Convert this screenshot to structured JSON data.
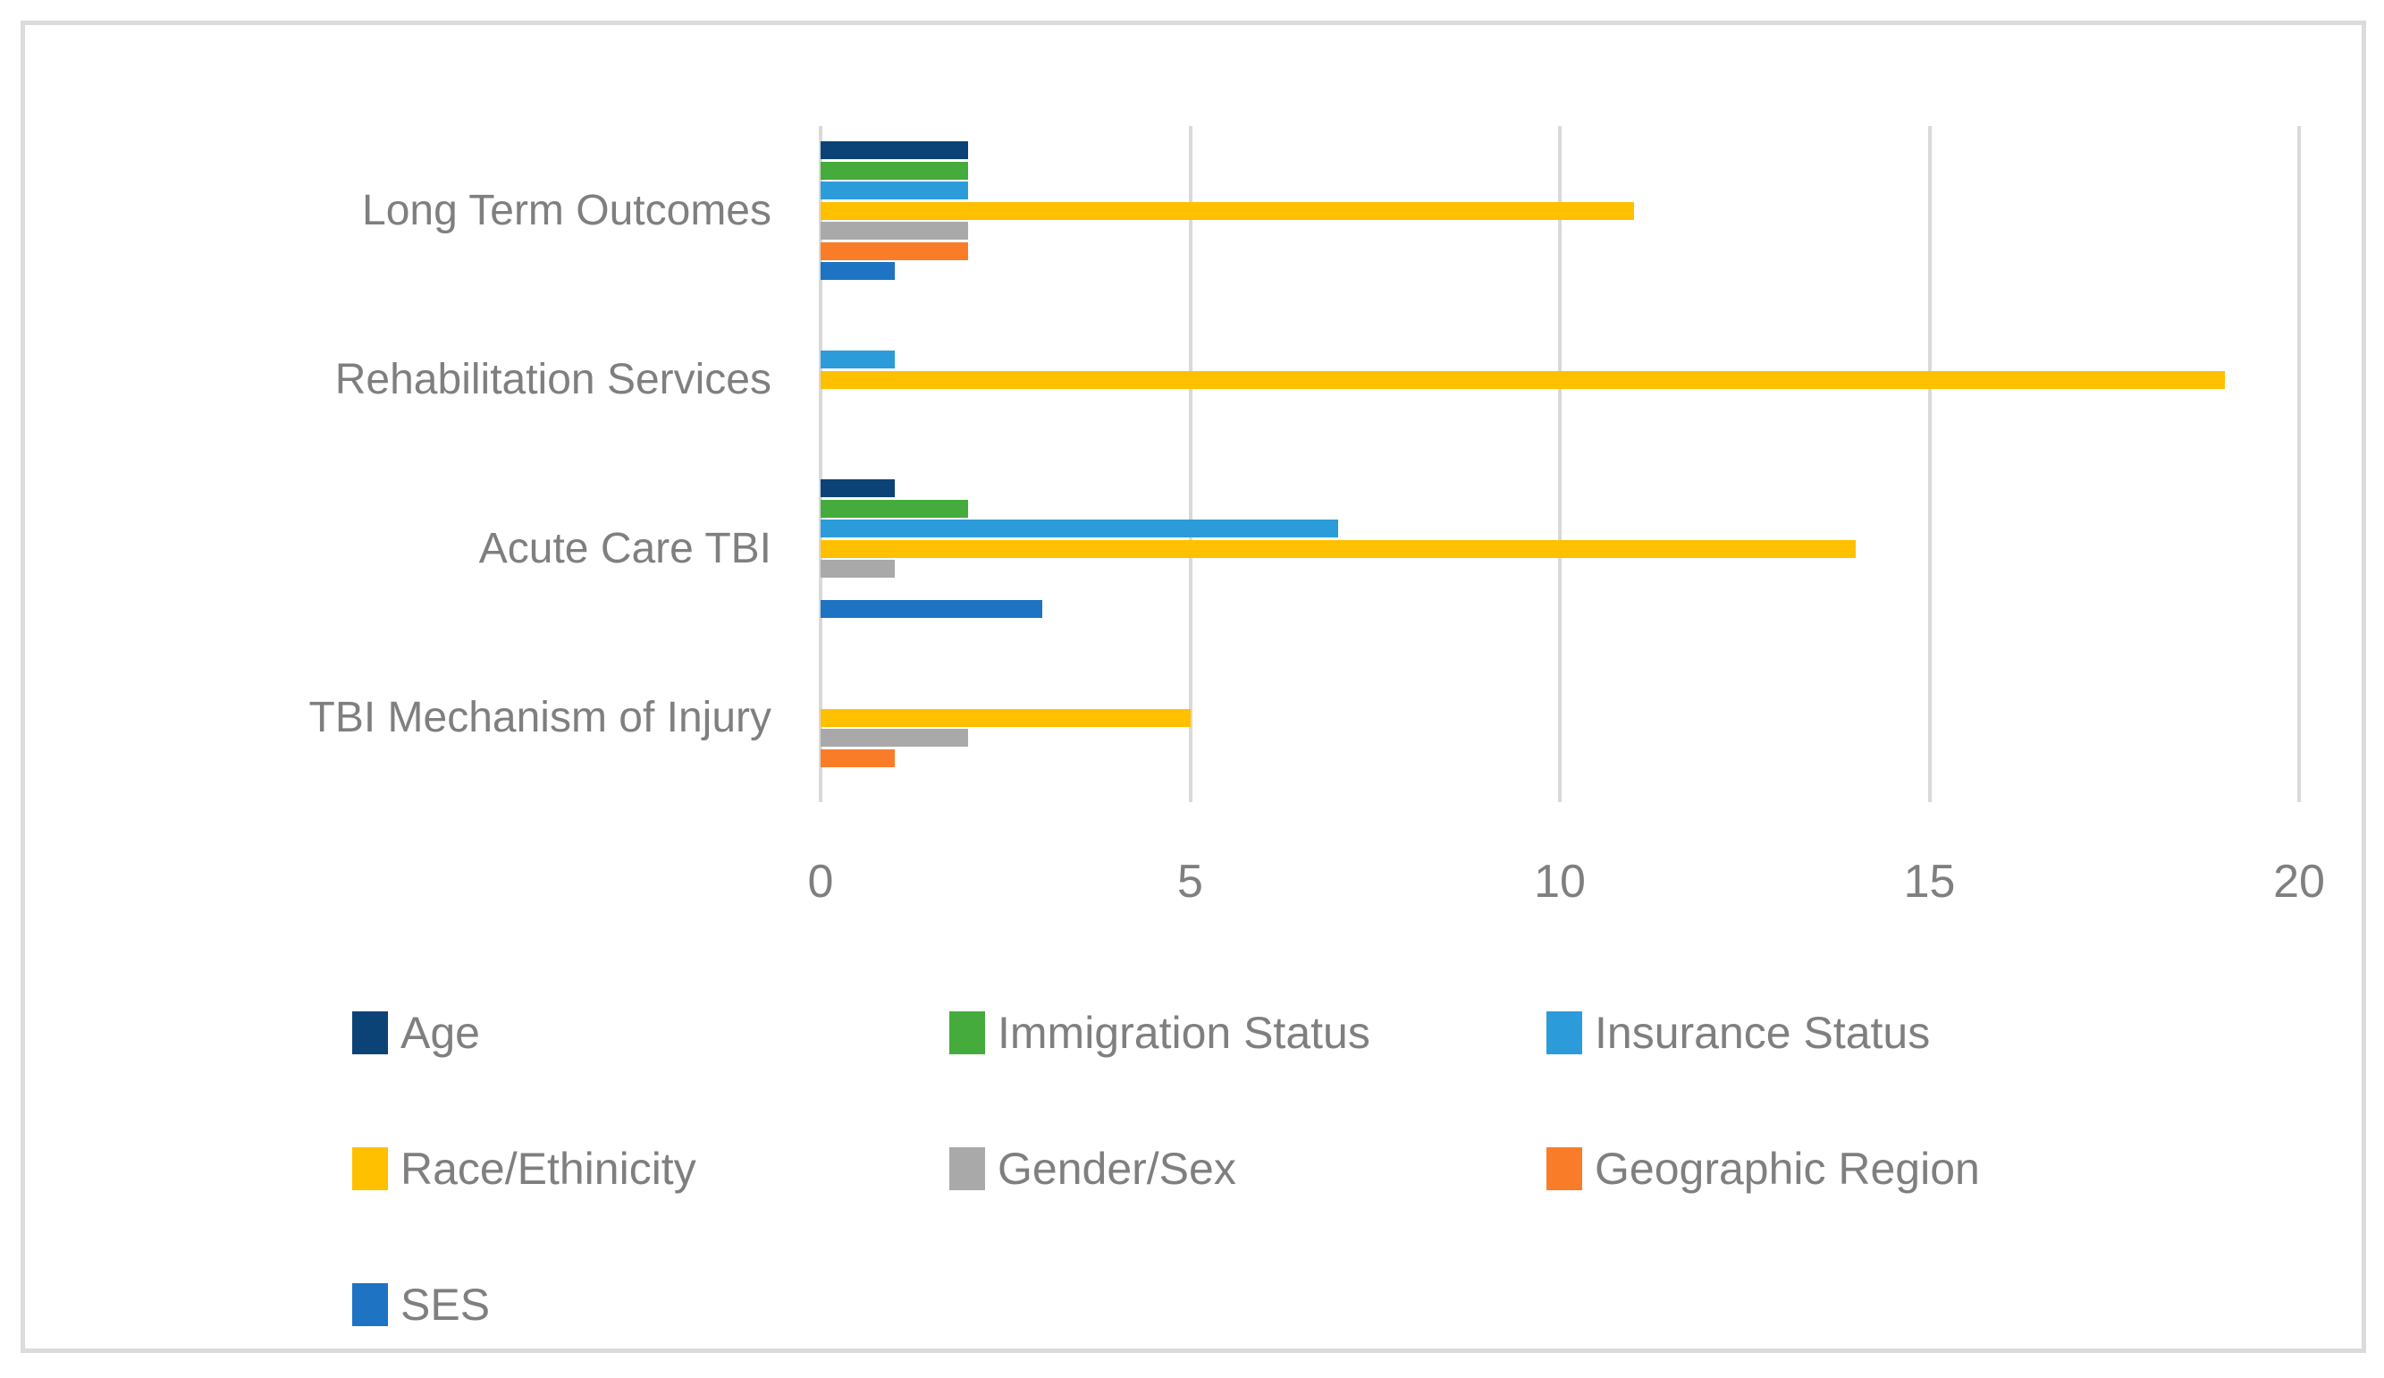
{
  "chart_data": {
    "type": "bar",
    "orientation": "horizontal",
    "title": "",
    "xlabel": "",
    "ylabel": "",
    "categories": [
      "Long Term Outcomes",
      "Rehabilitation Services",
      "Acute Care TBI",
      "TBI Mechanism of Injury"
    ],
    "series": [
      {
        "name": "Age",
        "color": "#0B4377",
        "values": [
          2,
          0,
          1,
          0
        ]
      },
      {
        "name": "Immigration Status",
        "color": "#45AB3C",
        "values": [
          2,
          0,
          2,
          0
        ]
      },
      {
        "name": "Insurance Status",
        "color": "#2B9CD9",
        "values": [
          2,
          1,
          7,
          0
        ]
      },
      {
        "name": "Race/Ethinicity",
        "color": "#FFC000",
        "values": [
          11,
          19,
          14,
          5
        ]
      },
      {
        "name": "Gender/Sex",
        "color": "#A9A9A9",
        "values": [
          2,
          0,
          1,
          2
        ]
      },
      {
        "name": "Geographic Region",
        "color": "#F97D28",
        "values": [
          2,
          0,
          0,
          1
        ]
      },
      {
        "name": "SES",
        "color": "#1E73C3",
        "values": [
          1,
          0,
          3,
          0
        ]
      }
    ],
    "x_axis": {
      "ticks": [
        "0",
        "5",
        "10",
        "15",
        "20"
      ],
      "tick_values": [
        0,
        5,
        10,
        15,
        20
      ],
      "min": 0,
      "max": 20
    },
    "grid": "vertical-gridlines-on",
    "legend_position": "bottom",
    "colors": {
      "gridline": "#D9D9D9",
      "frame_border": "#DBDBDB",
      "axis_text": "#7F7F7F"
    }
  }
}
